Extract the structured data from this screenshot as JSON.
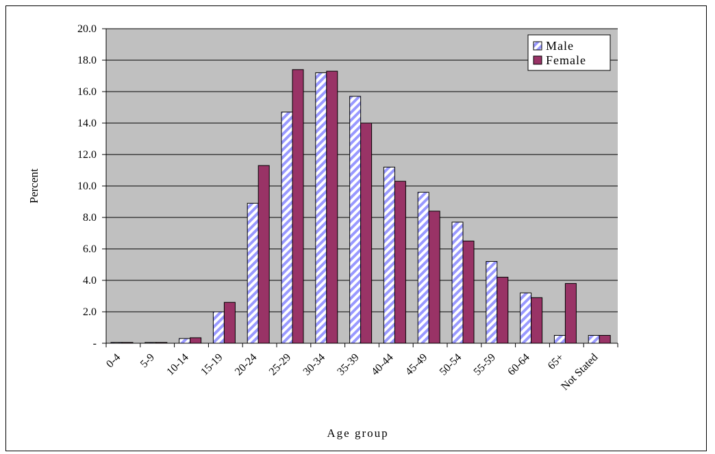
{
  "chart_data": {
    "type": "bar",
    "xlabel": "Age group",
    "ylabel": "Percent",
    "ylim": [
      0,
      20
    ],
    "yticks": [
      "-",
      "2.0",
      "4.0",
      "6.0",
      "8.0",
      "10.0",
      "12.0",
      "14.0",
      "16.0",
      "18.0",
      "20.0"
    ],
    "grid": true,
    "legend_position": "top-right",
    "categories": [
      "0-4",
      "5-9",
      "10-14",
      "15-19",
      "20-24",
      "25-29",
      "30-34",
      "35-39",
      "40-44",
      "45-49",
      "50-54",
      "55-59",
      "60-64",
      "65+",
      "Not Stated"
    ],
    "series": [
      {
        "name": "Male",
        "fill": "hatched",
        "values": [
          0.05,
          0.05,
          0.3,
          2.0,
          8.9,
          14.7,
          17.2,
          15.7,
          11.2,
          9.6,
          7.7,
          5.2,
          3.2,
          0.5,
          0.5
        ]
      },
      {
        "name": "Female",
        "color": "#993366",
        "values": [
          0.05,
          0.05,
          0.35,
          2.6,
          11.3,
          17.4,
          17.3,
          14.0,
          10.3,
          8.4,
          6.5,
          4.2,
          2.9,
          3.8,
          0.5
        ]
      }
    ]
  },
  "colors": {
    "plot_background": "#c0c0c0",
    "female_bar": "#993366",
    "male_hatch": "#9999ff",
    "gridline": "#000000"
  }
}
